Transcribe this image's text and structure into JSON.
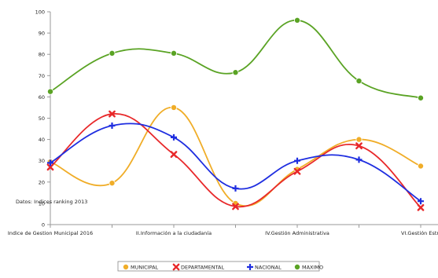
{
  "chart_data": {
    "type": "line",
    "categories": [
      "Indice de Gestion Municipal 2016",
      "",
      "II.Información a la ciudadanía",
      "",
      "IV.Gestión Administrativa",
      "",
      "VI.Gestión Estratégica"
    ],
    "x_tick_labels": [
      "Indice de Gestion Municipal 2016",
      "II.Información a la ciudadanía",
      "IV.Gestión Administrativa",
      "VI.Gestión Estratég"
    ],
    "ylim": [
      0,
      100
    ],
    "yticks": [
      0,
      10,
      20,
      30,
      40,
      50,
      60,
      70,
      80,
      90,
      100
    ],
    "annotation": "Datos: Indices ranking 2013",
    "legend_position": "bottom-center",
    "grid": false,
    "series": [
      {
        "name": "MUNICIPAL",
        "color": "#f0ad28",
        "marker": "circle",
        "values": [
          29.5,
          19.5,
          55,
          10,
          26,
          40,
          27.5
        ]
      },
      {
        "name": "DEPARTAMENTAL",
        "color": "#e8282a",
        "marker": "cross",
        "values": [
          27,
          52,
          33,
          8.5,
          25,
          37,
          8
        ]
      },
      {
        "name": "NACIONAL",
        "color": "#1f2ee0",
        "marker": "plus",
        "values": [
          29,
          46.5,
          41,
          17,
          30,
          30.5,
          11
        ]
      },
      {
        "name": "MAXIMO",
        "color": "#5aa324",
        "marker": "circle",
        "values": [
          62.5,
          80.5,
          80.5,
          71.5,
          96,
          67.5,
          59.5
        ]
      }
    ]
  }
}
